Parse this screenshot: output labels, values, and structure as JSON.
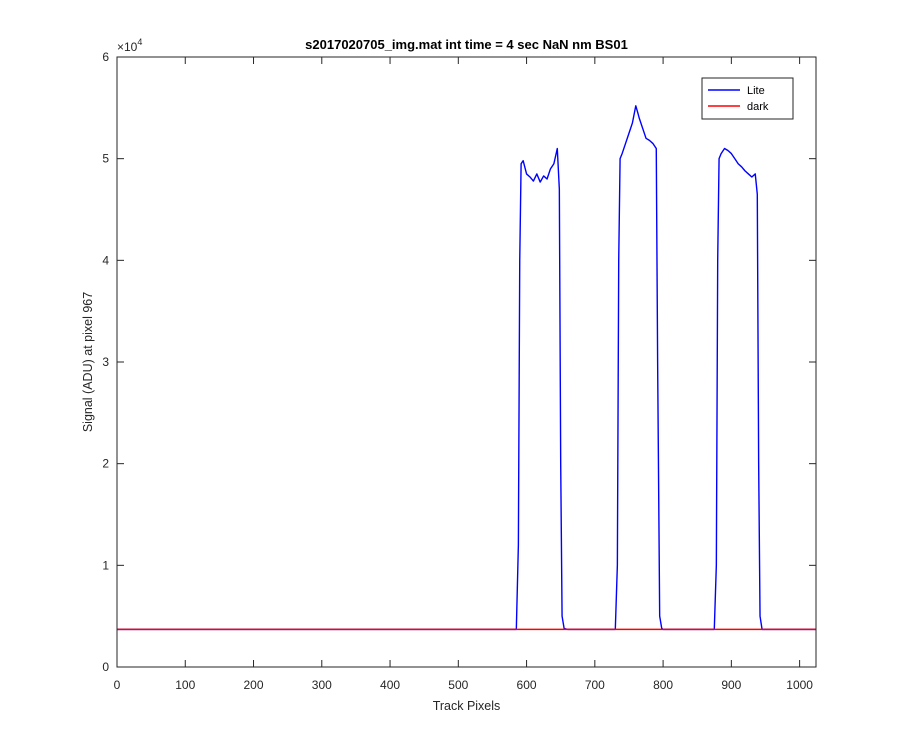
{
  "chart_data": {
    "type": "line",
    "title": "s2017020705_img.mat int time = 4 sec  NaN nm BS01",
    "xlabel": "Track Pixels",
    "ylabel": "Signal (ADU) at pixel 967",
    "xlim": [
      0,
      1024
    ],
    "ylim": [
      0,
      60000
    ],
    "x_ticks": [
      0,
      100,
      200,
      300,
      400,
      500,
      600,
      700,
      800,
      900,
      1000
    ],
    "y_ticks": [
      0,
      10000,
      20000,
      30000,
      40000,
      50000,
      60000
    ],
    "y_tick_labels": [
      "0",
      "1",
      "2",
      "3",
      "4",
      "5",
      "6"
    ],
    "y_exponent_base": "×10",
    "y_exponent_power": "4",
    "grid": false,
    "legend_position": "top-right",
    "colors": {
      "lite": "#0000ff",
      "dark": "#ff0000",
      "axis": "#262626"
    },
    "series": [
      {
        "name": "Lite",
        "x": [
          0,
          585,
          588,
          590,
          592,
          595,
          600,
          605,
          610,
          615,
          620,
          625,
          630,
          635,
          640,
          645,
          648,
          650,
          652,
          655,
          660,
          700,
          730,
          733,
          735,
          737,
          740,
          745,
          750,
          755,
          760,
          763,
          765,
          770,
          775,
          780,
          785,
          790,
          792,
          795,
          798,
          800,
          850,
          875,
          878,
          880,
          882,
          885,
          890,
          895,
          900,
          905,
          910,
          915,
          920,
          925,
          930,
          935,
          938,
          940,
          942,
          945,
          1024
        ],
        "y": [
          3700,
          3700,
          12000,
          40000,
          49500,
          49800,
          48500,
          48200,
          47800,
          48500,
          47700,
          48300,
          48000,
          49000,
          49500,
          51000,
          47000,
          20000,
          5000,
          3800,
          3700,
          3700,
          3700,
          10000,
          40000,
          50000,
          50500,
          51500,
          52500,
          53500,
          55200,
          54500,
          54000,
          53000,
          52000,
          51800,
          51500,
          51000,
          30000,
          5000,
          3800,
          3700,
          3700,
          3700,
          10000,
          40000,
          50000,
          50500,
          51000,
          50800,
          50500,
          50000,
          49500,
          49200,
          48800,
          48500,
          48200,
          48500,
          46500,
          20000,
          5000,
          3700,
          3700
        ]
      },
      {
        "name": "dark",
        "x": [
          0,
          1024
        ],
        "y": [
          3700,
          3700
        ]
      }
    ]
  }
}
